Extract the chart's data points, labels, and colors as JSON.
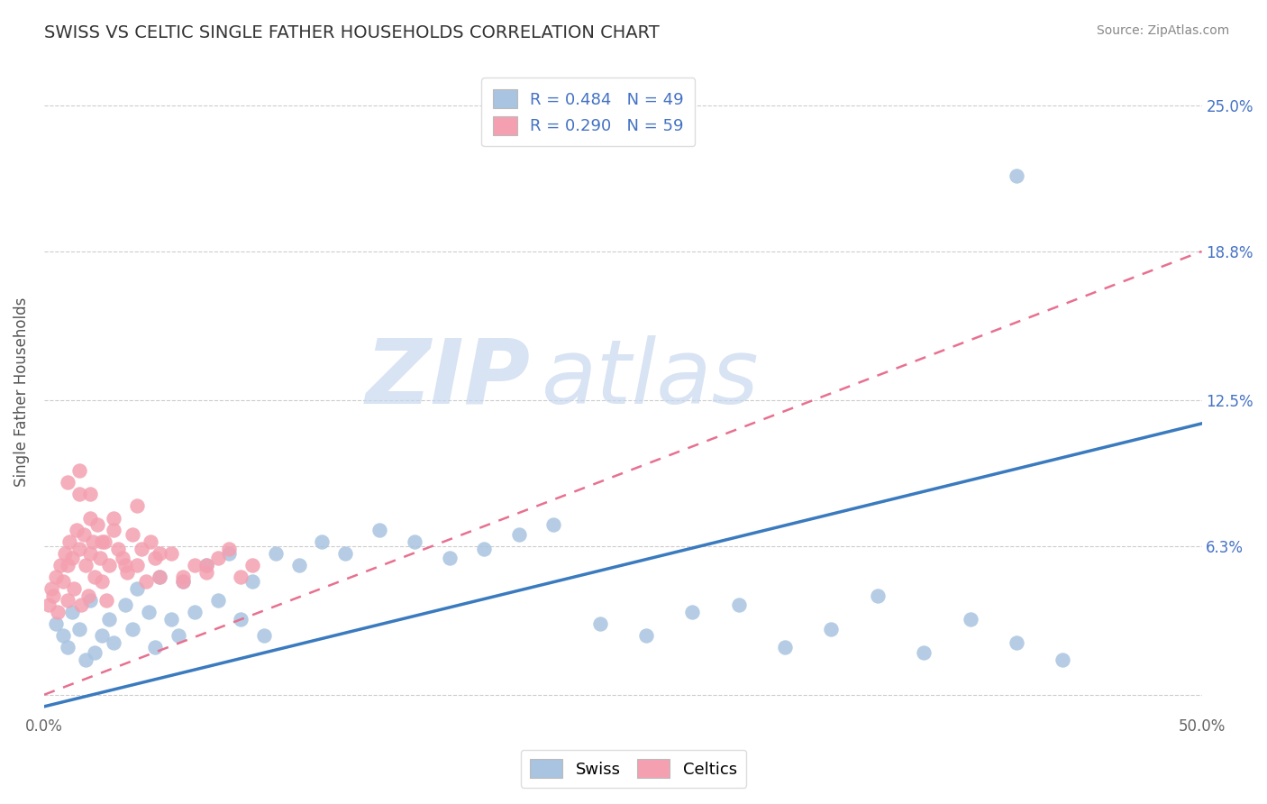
{
  "title": "SWISS VS CELTIC SINGLE FATHER HOUSEHOLDS CORRELATION CHART",
  "source": "Source: ZipAtlas.com",
  "ylabel": "Single Father Households",
  "xlim": [
    0.0,
    0.5
  ],
  "ylim": [
    -0.008,
    0.265
  ],
  "ytick_positions": [
    0.0,
    0.063,
    0.125,
    0.188,
    0.25
  ],
  "ytick_labels": [
    "",
    "6.3%",
    "12.5%",
    "18.8%",
    "25.0%"
  ],
  "swiss_color": "#a8c4e0",
  "celtics_color": "#f4a0b0",
  "swiss_line_color": "#3a7abf",
  "celtics_line_color": "#e87090",
  "legend_R_swiss": "R = 0.484",
  "legend_N_swiss": "N = 49",
  "legend_R_celtics": "R = 0.290",
  "legend_N_celtics": "N = 59",
  "swiss_line_x0": 0.0,
  "swiss_line_y0": -0.005,
  "swiss_line_x1": 0.5,
  "swiss_line_y1": 0.115,
  "celtics_line_x0": 0.0,
  "celtics_line_y0": 0.0,
  "celtics_line_x1": 0.5,
  "celtics_line_y1": 0.188,
  "swiss_x": [
    0.005,
    0.008,
    0.01,
    0.012,
    0.015,
    0.018,
    0.02,
    0.022,
    0.025,
    0.028,
    0.03,
    0.035,
    0.038,
    0.04,
    0.045,
    0.048,
    0.05,
    0.055,
    0.058,
    0.06,
    0.065,
    0.07,
    0.075,
    0.08,
    0.085,
    0.09,
    0.095,
    0.1,
    0.11,
    0.12,
    0.13,
    0.145,
    0.16,
    0.175,
    0.19,
    0.205,
    0.22,
    0.24,
    0.26,
    0.28,
    0.3,
    0.32,
    0.34,
    0.36,
    0.38,
    0.4,
    0.42,
    0.44,
    0.42
  ],
  "swiss_y": [
    0.03,
    0.025,
    0.02,
    0.035,
    0.028,
    0.015,
    0.04,
    0.018,
    0.025,
    0.032,
    0.022,
    0.038,
    0.028,
    0.045,
    0.035,
    0.02,
    0.05,
    0.032,
    0.025,
    0.048,
    0.035,
    0.055,
    0.04,
    0.06,
    0.032,
    0.048,
    0.025,
    0.06,
    0.055,
    0.065,
    0.06,
    0.07,
    0.065,
    0.058,
    0.062,
    0.068,
    0.072,
    0.03,
    0.025,
    0.035,
    0.038,
    0.02,
    0.028,
    0.042,
    0.018,
    0.032,
    0.022,
    0.015,
    0.22
  ],
  "celtics_x": [
    0.002,
    0.003,
    0.004,
    0.005,
    0.006,
    0.007,
    0.008,
    0.009,
    0.01,
    0.01,
    0.011,
    0.012,
    0.013,
    0.014,
    0.015,
    0.016,
    0.017,
    0.018,
    0.019,
    0.02,
    0.02,
    0.021,
    0.022,
    0.023,
    0.024,
    0.025,
    0.026,
    0.027,
    0.028,
    0.03,
    0.032,
    0.034,
    0.036,
    0.038,
    0.04,
    0.042,
    0.044,
    0.046,
    0.048,
    0.05,
    0.055,
    0.06,
    0.065,
    0.07,
    0.075,
    0.08,
    0.085,
    0.09,
    0.01,
    0.015,
    0.02,
    0.025,
    0.03,
    0.035,
    0.04,
    0.05,
    0.06,
    0.07,
    0.015
  ],
  "celtics_y": [
    0.038,
    0.045,
    0.042,
    0.05,
    0.035,
    0.055,
    0.048,
    0.06,
    0.04,
    0.055,
    0.065,
    0.058,
    0.045,
    0.07,
    0.062,
    0.038,
    0.068,
    0.055,
    0.042,
    0.06,
    0.075,
    0.065,
    0.05,
    0.072,
    0.058,
    0.048,
    0.065,
    0.04,
    0.055,
    0.07,
    0.062,
    0.058,
    0.052,
    0.068,
    0.055,
    0.062,
    0.048,
    0.065,
    0.058,
    0.05,
    0.06,
    0.048,
    0.055,
    0.052,
    0.058,
    0.062,
    0.05,
    0.055,
    0.09,
    0.095,
    0.085,
    0.065,
    0.075,
    0.055,
    0.08,
    0.06,
    0.05,
    0.055,
    0.085
  ]
}
